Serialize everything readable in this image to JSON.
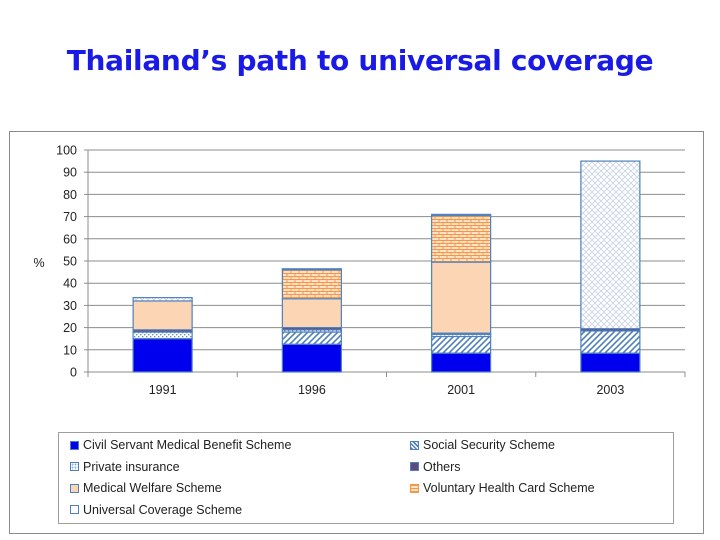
{
  "title": "Thailand’s path to universal coverage",
  "colors": {
    "title": "#1a1ae6",
    "csmbs": "#0000ee",
    "social_security": "#4f81bd",
    "private_insurance": "#8eb4e3",
    "others": "#604a7b",
    "medical_welfare": "#fcd5b5",
    "voluntary_card": "#f79646",
    "universal_coverage": "#95b3d7",
    "border": "#4f81bd"
  },
  "chart_data": {
    "type": "bar",
    "stacked": true,
    "categories": [
      "1991",
      "1996",
      "2001",
      "2003"
    ],
    "ylabel": "%",
    "ylim": [
      0,
      100
    ],
    "yticks": [
      0,
      10,
      20,
      30,
      40,
      50,
      60,
      70,
      80,
      90,
      100
    ],
    "grid": true,
    "legend_position": "bottom",
    "series": [
      {
        "name": "Civil Servant Medical Benefit Scheme",
        "key": "csmbs",
        "pattern": "solid",
        "values": [
          15,
          12.5,
          8.5,
          8.5
        ]
      },
      {
        "name": "Social Security Scheme",
        "key": "social_security",
        "pattern": "diag",
        "values": [
          0,
          5.5,
          7.5,
          10
        ]
      },
      {
        "name": "Private insurance",
        "key": "private_insurance",
        "pattern": "dots",
        "values": [
          3,
          1,
          1,
          0
        ]
      },
      {
        "name": "Others",
        "key": "others",
        "pattern": "solid",
        "values": [
          1,
          1,
          0.5,
          1
        ]
      },
      {
        "name": "Medical Welfare Scheme",
        "key": "medical_welfare",
        "pattern": "solid",
        "values": [
          13,
          13,
          32,
          0
        ]
      },
      {
        "name": "Voluntary Health Card Scheme",
        "key": "voluntary_card",
        "pattern": "brick",
        "values": [
          0,
          13,
          21,
          0
        ]
      },
      {
        "name": "Universal Coverage Scheme",
        "key": "universal_coverage",
        "pattern": "cross",
        "values": [
          1.5,
          0.5,
          0.5,
          75.5
        ]
      }
    ]
  }
}
